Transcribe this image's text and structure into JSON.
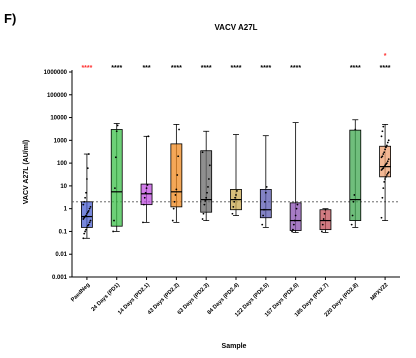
{
  "figure": {
    "panel_label": "F)"
  },
  "chart_data": {
    "type": "box",
    "title": "VACV A27L",
    "xlabel": "Sample",
    "ylabel": "VACV A27L (AU/ml)",
    "yscale": "log",
    "ylim": [
      0.001,
      1000000
    ],
    "yticks": [
      {
        "value": 0.001,
        "label": "0.001"
      },
      {
        "value": 0.01,
        "label": "0.01"
      },
      {
        "value": 0.1,
        "label": "0.1"
      },
      {
        "value": 1,
        "label": "1"
      },
      {
        "value": 10,
        "label": "10"
      },
      {
        "value": 100,
        "label": "100"
      },
      {
        "value": 1000,
        "label": "1000"
      },
      {
        "value": 10000,
        "label": "10000"
      },
      {
        "value": 100000,
        "label": "100000"
      },
      {
        "value": 1000000,
        "label": "1000000"
      }
    ],
    "threshold": 2,
    "categories": [
      {
        "label": "PaedNeg",
        "color": "#4a5fd0",
        "sig": "****",
        "sig_color": "#ff3030",
        "whisker": [
          0.05,
          250
        ],
        "q1": 0.15,
        "median": 0.45,
        "q3": 2.0,
        "points": [
          0.05,
          0.08,
          0.1,
          0.12,
          0.15,
          0.18,
          0.2,
          0.25,
          0.3,
          0.35,
          0.4,
          0.45,
          0.5,
          0.6,
          0.7,
          0.8,
          1.0,
          1.2,
          1.5,
          2.0,
          3,
          5,
          20,
          60,
          250
        ]
      },
      {
        "label": "24 Days (PD1)",
        "color": "#3cc04a",
        "sig": "****",
        "sig_color": "#000000",
        "whisker": [
          0.1,
          5500
        ],
        "q1": 0.17,
        "median": 5.5,
        "q3": 3000,
        "points": [
          0.1,
          0.3,
          8,
          180,
          2500,
          4500
        ]
      },
      {
        "label": "14 Days (PD2.1)",
        "color": "#c050e0",
        "sig": "***",
        "sig_color": "#000000",
        "whisker": [
          0.25,
          1500
        ],
        "q1": 1.5,
        "median": 4.5,
        "q3": 12,
        "points": [
          0.25,
          1.5,
          3,
          5,
          8,
          11,
          1500
        ]
      },
      {
        "label": "43 Days (PD2.2)",
        "color": "#f08a20",
        "sig": "****",
        "sig_color": "#000000",
        "whisker": [
          0.25,
          5000
        ],
        "q1": 1.2,
        "median": 5.5,
        "q3": 700,
        "points": [
          0.3,
          1.0,
          2,
          4,
          7,
          30,
          200,
          3000
        ]
      },
      {
        "label": "63 Days (PD2.3)",
        "color": "#6a6a6a",
        "sig": "****",
        "sig_color": "#000000",
        "whisker": [
          0.3,
          2500
        ],
        "q1": 0.7,
        "median": 2.5,
        "q3": 350,
        "points": [
          0.35,
          0.6,
          1.5,
          2.2,
          3,
          5,
          9,
          20,
          80,
          300
        ]
      },
      {
        "label": "84 Days (PD2.4)",
        "color": "#c8a850",
        "sig": "****",
        "sig_color": "#000000",
        "whisker": [
          0.5,
          1800
        ],
        "q1": 0.9,
        "median": 2.5,
        "q3": 7,
        "points": [
          0.6,
          1.2,
          2,
          3,
          4,
          6
        ]
      },
      {
        "label": "122 Days (PD2.5)",
        "color": "#5a5ab0",
        "sig": "****",
        "sig_color": "#000000",
        "whisker": [
          0.15,
          1600
        ],
        "q1": 0.4,
        "median": 0.9,
        "q3": 7,
        "points": [
          0.2,
          0.5,
          0.9,
          2,
          5,
          9
        ]
      },
      {
        "label": "157 Days (PD2.6)",
        "color": "#8a50b0",
        "sig": "****",
        "sig_color": "#000000",
        "whisker": [
          0.09,
          6000
        ],
        "q1": 0.11,
        "median": 0.3,
        "q3": 1.8,
        "points": [
          0.1,
          0.12,
          0.2,
          0.3,
          0.5,
          1,
          1.5
        ]
      },
      {
        "label": "185 Days (PD2.7)",
        "color": "#c05058",
        "sig": "",
        "sig_color": "#000000",
        "whisker": [
          0.09,
          1.0
        ],
        "q1": 0.12,
        "median": 0.3,
        "q3": 0.9,
        "points": [
          0.1,
          0.2,
          0.35,
          0.6,
          0.9
        ]
      },
      {
        "label": "220 Days (PD2.8)",
        "color": "#40a850",
        "sig": "****",
        "sig_color": "#000000",
        "whisker": [
          0.15,
          8000
        ],
        "q1": 0.3,
        "median": 2.5,
        "q3": 2800,
        "points": [
          0.2,
          0.5,
          2,
          4,
          3000
        ]
      },
      {
        "label": "MPXV22",
        "color": "#f0a070",
        "sig": "****",
        "sig_color": "#000000",
        "sig_extra": "*",
        "sig_extra_color": "#ff3030",
        "whisker": [
          0.3,
          5000
        ],
        "q1": 25,
        "median": 70,
        "q3": 550,
        "points": [
          0.4,
          3,
          8,
          15,
          20,
          25,
          30,
          35,
          40,
          50,
          55,
          60,
          70,
          80,
          90,
          100,
          120,
          150,
          180,
          200,
          250,
          300,
          400,
          500,
          600,
          800,
          1000,
          1500,
          2500,
          4000
        ]
      }
    ]
  }
}
